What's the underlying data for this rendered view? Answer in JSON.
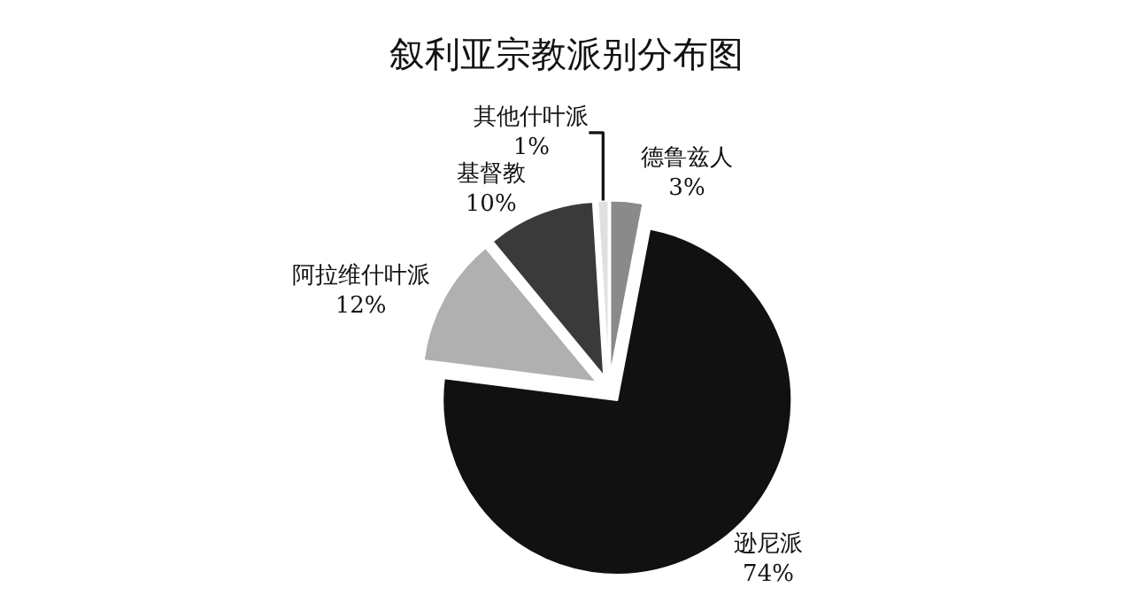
{
  "chart_data": {
    "type": "pie",
    "title": "叙利亚宗教派别分布图",
    "categories": [
      "德鲁兹人",
      "逊尼派",
      "阿拉维什叶派",
      "基督教",
      "其他什叶派"
    ],
    "values": [
      3,
      74,
      12,
      10,
      1
    ],
    "value_labels": [
      "3%",
      "74%",
      "12%",
      "10%",
      "1%"
    ],
    "colors": [
      "#8a8a8a",
      "#111111",
      "#b0b0b0",
      "#3a3a3a",
      "#e0e0e0"
    ],
    "legend": false
  }
}
